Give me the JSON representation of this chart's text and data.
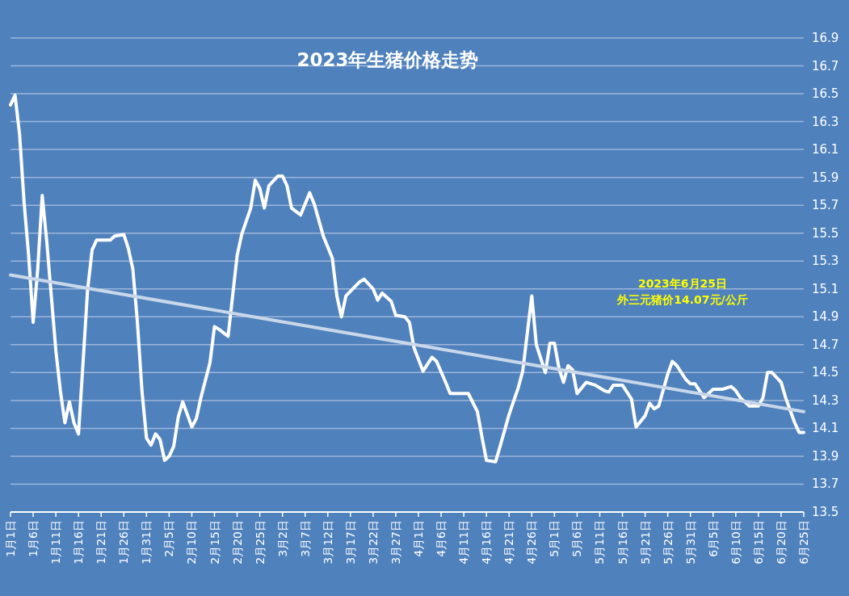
{
  "chart_data": {
    "type": "line",
    "title": "2023年生猪价格走势",
    "annotations": [
      "2023年6月25日",
      "外三元猪价14.07元/公斤"
    ],
    "xlim": [
      "--01-01",
      "--06-25"
    ],
    "xticks": [
      {
        "value": "--01-01",
        "label": "1月1日"
      },
      {
        "value": "--01-06",
        "label": "1月6日"
      },
      {
        "value": "--01-11",
        "label": "1月11日"
      },
      {
        "value": "--01-16",
        "label": "1月16日"
      },
      {
        "value": "--01-21",
        "label": "1月21日"
      },
      {
        "value": "--01-26",
        "label": "1月26日"
      },
      {
        "value": "--01-31",
        "label": "1月31日"
      },
      {
        "value": "--02-05",
        "label": "2月5日"
      },
      {
        "value": "--02-10",
        "label": "2月10日"
      },
      {
        "value": "--02-15",
        "label": "2月15日"
      },
      {
        "value": "--02-20",
        "label": "2月20日"
      },
      {
        "value": "--02-25",
        "label": "2月25日"
      },
      {
        "value": "--03-02",
        "label": "3月2日"
      },
      {
        "value": "--03-07",
        "label": "3月7日"
      },
      {
        "value": "--03-12",
        "label": "3月12日"
      },
      {
        "value": "--03-17",
        "label": "3月17日"
      },
      {
        "value": "--03-22",
        "label": "3月22日"
      },
      {
        "value": "--03-27",
        "label": "3月27日"
      },
      {
        "value": "--04-01",
        "label": "4月1日"
      },
      {
        "value": "--04-06",
        "label": "4月6日"
      },
      {
        "value": "--04-11",
        "label": "4月11日"
      },
      {
        "value": "--04-16",
        "label": "4月16日"
      },
      {
        "value": "--04-21",
        "label": "4月21日"
      },
      {
        "value": "--04-26",
        "label": "4月26日"
      },
      {
        "value": "--05-01",
        "label": "5月1日"
      },
      {
        "value": "--05-06",
        "label": "5月6日"
      },
      {
        "value": "--05-11",
        "label": "5月11日"
      },
      {
        "value": "--05-16",
        "label": "5月16日"
      },
      {
        "value": "--05-21",
        "label": "5月21日"
      },
      {
        "value": "--05-26",
        "label": "5月26日"
      },
      {
        "value": "--05-31",
        "label": "5月31日"
      },
      {
        "value": "--06-05",
        "label": "6月5日"
      },
      {
        "value": "--06-10",
        "label": "6月10日"
      },
      {
        "value": "--06-15",
        "label": "6月15日"
      },
      {
        "value": "--06-20",
        "label": "6月20日"
      },
      {
        "value": "--06-25",
        "label": "6月25日"
      }
    ],
    "ylim": [
      13.5,
      16.9
    ],
    "yticks": [
      13.5,
      13.7,
      13.9,
      14.1,
      14.3,
      14.5,
      14.7,
      14.9,
      15.1,
      15.3,
      15.5,
      15.7,
      15.9,
      16.1,
      16.3,
      16.5,
      16.7,
      16.9
    ],
    "grid": "y",
    "marker": "none",
    "line_style": "solid",
    "series": [
      {
        "color": "#ffffff",
        "x": [
          "--01-01",
          "--01-02",
          "--01-03",
          "--01-04",
          "--01-05",
          "--01-06",
          "--01-07",
          "--01-08",
          "--01-09",
          "--01-10",
          "--01-11",
          "--01-12",
          "--01-13",
          "--01-14",
          "--01-15",
          "--01-16",
          "--01-17",
          "--01-18",
          "--01-19",
          "--01-20",
          "--01-23",
          "--01-24",
          "--01-26",
          "--01-27",
          "--01-28",
          "--01-29",
          "--01-30",
          "--01-31",
          "--02-01",
          "--02-02",
          "--02-03",
          "--02-04",
          "--02-05",
          "--02-06",
          "--02-07",
          "--02-08",
          "--02-09",
          "--02-10",
          "--02-11",
          "--02-12",
          "--02-14",
          "--02-15",
          "--02-16",
          "--02-18",
          "--02-19",
          "--02-20",
          "--02-21",
          "--02-23",
          "--02-24",
          "--02-25",
          "--02-26",
          "--02-27",
          "--03-01",
          "--03-02",
          "--03-03",
          "--03-04",
          "--03-06",
          "--03-08",
          "--03-09",
          "--03-11",
          "--03-13",
          "--03-14",
          "--03-15",
          "--03-16",
          "--03-19",
          "--03-20",
          "--03-22",
          "--03-23",
          "--03-24",
          "--03-26",
          "--03-27",
          "--03-29",
          "--03-30",
          "--03-31",
          "--04-02",
          "--04-04",
          "--04-05",
          "--04-07",
          "--04-08",
          "--04-12",
          "--04-14",
          "--04-15",
          "--04-16",
          "--04-18",
          "--04-19",
          "--04-21",
          "--04-23",
          "--04-24",
          "--04-25",
          "--04-26",
          "--04-27",
          "--04-29",
          "--04-30",
          "--05-01",
          "--05-02",
          "--05-03",
          "--05-04",
          "--05-05",
          "--05-06",
          "--05-08",
          "--05-10",
          "--05-12",
          "--05-13",
          "--05-14",
          "--05-16",
          "--05-18",
          "--05-19",
          "--05-21",
          "--05-22",
          "--05-23",
          "--05-24",
          "--05-26",
          "--05-27",
          "--05-28",
          "--05-30",
          "--05-31",
          "--06-01",
          "--06-03",
          "--06-05",
          "--06-07",
          "--06-09",
          "--06-10",
          "--06-11",
          "--06-13",
          "--06-15",
          "--06-16",
          "--06-17",
          "--06-18",
          "--06-20",
          "--06-21",
          "--06-23",
          "--06-24",
          "--06-25"
        ],
        "values": [
          16.42,
          16.49,
          16.21,
          15.72,
          15.34,
          14.86,
          15.24,
          15.77,
          15.44,
          15.05,
          14.66,
          14.37,
          14.14,
          14.29,
          14.14,
          14.06,
          14.57,
          15.09,
          15.38,
          15.45,
          15.45,
          15.48,
          15.49,
          15.39,
          15.24,
          14.86,
          14.37,
          14.03,
          13.98,
          14.06,
          14.02,
          13.87,
          13.9,
          13.97,
          14.18,
          14.29,
          14.2,
          14.11,
          14.17,
          14.32,
          14.57,
          14.83,
          14.81,
          14.76,
          15.05,
          15.34,
          15.49,
          15.68,
          15.88,
          15.82,
          15.68,
          15.84,
          15.91,
          15.91,
          15.84,
          15.68,
          15.63,
          15.79,
          15.71,
          15.48,
          15.32,
          15.05,
          14.9,
          15.05,
          15.15,
          15.17,
          15.1,
          15.02,
          15.07,
          15.01,
          14.91,
          14.9,
          14.86,
          14.68,
          14.51,
          14.61,
          14.58,
          14.43,
          14.35,
          14.35,
          14.22,
          14.04,
          13.87,
          13.86,
          13.97,
          14.2,
          14.39,
          14.51,
          14.78,
          15.05,
          14.7,
          14.5,
          14.71,
          14.71,
          14.53,
          14.43,
          14.55,
          14.52,
          14.35,
          14.43,
          14.41,
          14.37,
          14.36,
          14.41,
          14.41,
          14.31,
          14.11,
          14.19,
          14.28,
          14.24,
          14.26,
          14.49,
          14.58,
          14.55,
          14.45,
          14.42,
          14.42,
          14.32,
          14.38,
          14.38,
          14.4,
          14.37,
          14.32,
          14.26,
          14.26,
          14.32,
          14.5,
          14.5,
          14.43,
          14.32,
          14.14,
          14.07,
          14.07
        ]
      },
      {
        "color": "#c9d7ea",
        "x": [
          "--01-01",
          "--06-25"
        ],
        "values": [
          15.2,
          14.22
        ]
      }
    ]
  }
}
